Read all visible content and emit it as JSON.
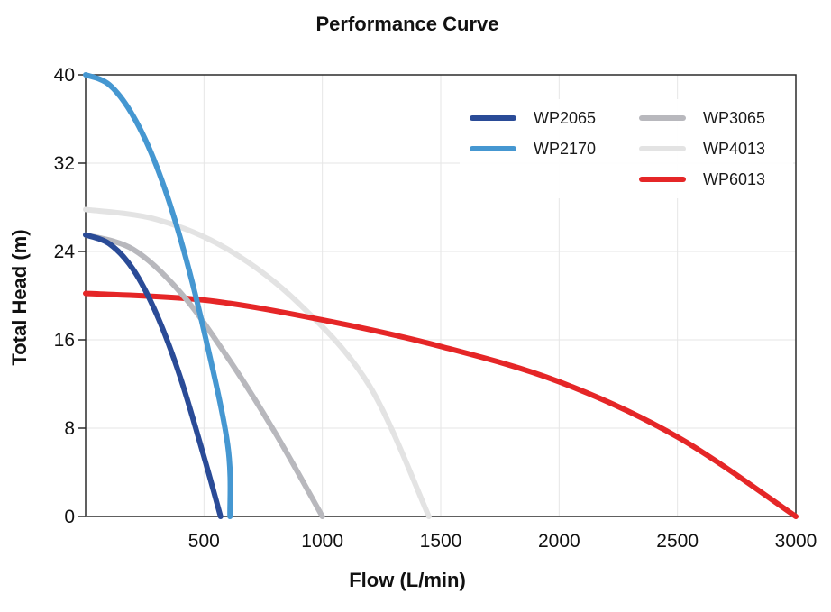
{
  "chart_data": {
    "type": "line",
    "title": "Performance Curve",
    "xlabel": "Flow (L/min)",
    "ylabel": "Total Head (m)",
    "xlim": [
      0,
      3000
    ],
    "ylim": [
      0,
      40
    ],
    "xticks": [
      500,
      1000,
      1500,
      2000,
      2500,
      3000
    ],
    "yticks": [
      0,
      8,
      16,
      24,
      32,
      40
    ],
    "grid": true,
    "legend_position": "top-right",
    "series": [
      {
        "name": "WP2065",
        "color": "#2a4b97",
        "x": [
          0,
          100,
          200,
          300,
          400,
          500,
          570
        ],
        "y": [
          25.5,
          24.7,
          22.4,
          18.3,
          12.6,
          5.4,
          0
        ]
      },
      {
        "name": "WP2170",
        "color": "#4597d1",
        "x": [
          0,
          100,
          200,
          300,
          400,
          500,
          600,
          610
        ],
        "y": [
          40,
          39.1,
          36.3,
          31.7,
          25.2,
          16.8,
          6.5,
          0
        ]
      },
      {
        "name": "WP3065",
        "color": "#b8b8bd",
        "x": [
          0,
          200,
          400,
          600,
          800,
          1000
        ],
        "y": [
          25.5,
          24.2,
          20.3,
          14.4,
          7.6,
          0
        ]
      },
      {
        "name": "WP4013",
        "color": "#e3e3e3",
        "x": [
          0,
          300,
          600,
          900,
          1200,
          1450
        ],
        "y": [
          27.8,
          26.9,
          24.2,
          19.3,
          11.8,
          0
        ]
      },
      {
        "name": "WP6013",
        "color": "#e52627",
        "x": [
          0,
          500,
          1000,
          1500,
          2000,
          2500,
          3000
        ],
        "y": [
          20.2,
          19.6,
          17.8,
          15.4,
          12.2,
          7.2,
          0
        ]
      }
    ]
  }
}
